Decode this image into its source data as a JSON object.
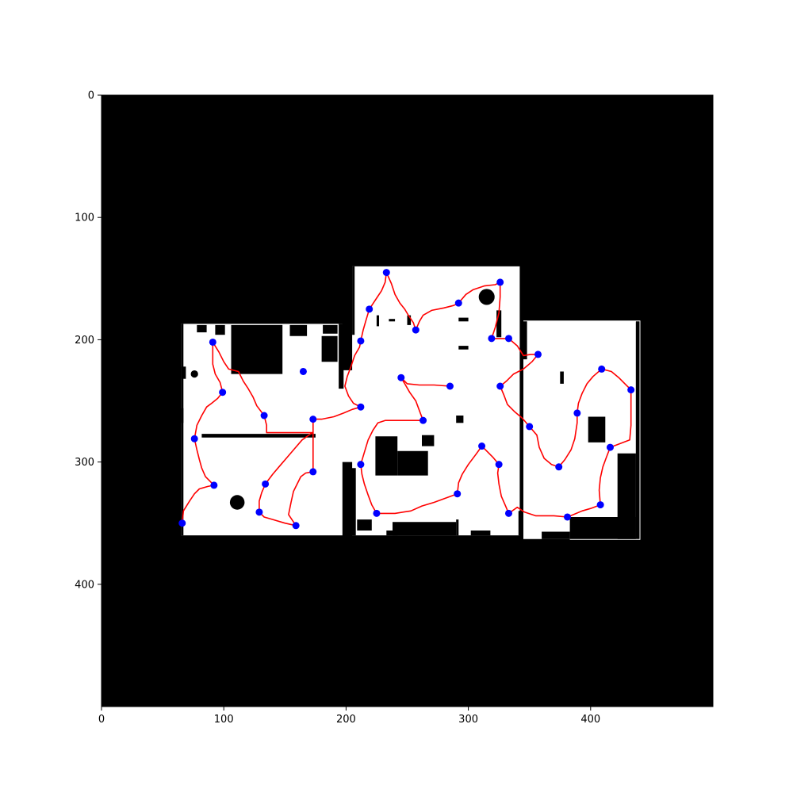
{
  "colors": {
    "background": "#000000",
    "free_space": "#ffffff",
    "path": "#ff0000",
    "waypoint": "#0000ff"
  },
  "chart_data": {
    "type": "image-with-path",
    "xlim": [
      0,
      500
    ],
    "ylim": [
      500,
      0
    ],
    "xticks": [
      "0",
      "100",
      "200",
      "300",
      "400"
    ],
    "yticks": [
      "0",
      "100",
      "200",
      "300",
      "400"
    ],
    "free_regions": [
      [
        [
          65,
          187
        ],
        [
          197,
          187
        ],
        [
          197,
          360
        ],
        [
          65,
          360
        ]
      ],
      [
        [
          205,
          140
        ],
        [
          342,
          140
        ],
        [
          342,
          360
        ],
        [
          205,
          360
        ]
      ],
      [
        [
          345,
          185
        ],
        [
          437,
          185
        ],
        [
          437,
          363
        ],
        [
          345,
          363
        ]
      ],
      [
        [
          195,
          225
        ],
        [
          210,
          225
        ],
        [
          210,
          300
        ],
        [
          195,
          300
        ]
      ]
    ],
    "obstacles": [
      [
        [
          106,
          188
        ],
        [
          148,
          188
        ],
        [
          148,
          228
        ],
        [
          106,
          228
        ]
      ],
      [
        [
          78,
          188
        ],
        [
          86,
          188
        ],
        [
          86,
          194
        ],
        [
          78,
          194
        ]
      ],
      [
        [
          93,
          188
        ],
        [
          101,
          188
        ],
        [
          101,
          196
        ],
        [
          93,
          196
        ]
      ],
      [
        [
          154,
          188
        ],
        [
          168,
          188
        ],
        [
          168,
          197
        ],
        [
          154,
          197
        ]
      ],
      [
        [
          181,
          188
        ],
        [
          193,
          188
        ],
        [
          193,
          195
        ],
        [
          181,
          195
        ]
      ],
      [
        [
          180,
          197
        ],
        [
          193,
          197
        ],
        [
          193,
          218
        ],
        [
          180,
          218
        ]
      ],
      [
        [
          194,
          187
        ],
        [
          198,
          187
        ],
        [
          198,
          240
        ],
        [
          194,
          240
        ]
      ],
      [
        [
          82,
          277
        ],
        [
          175,
          277
        ],
        [
          175,
          280
        ],
        [
          82,
          280
        ]
      ],
      [
        [
          65,
          187
        ],
        [
          67,
          187
        ],
        [
          67,
          360
        ],
        [
          65,
          360
        ]
      ],
      [
        [
          65,
          256
        ],
        [
          67,
          256
        ],
        [
          67,
          268
        ],
        [
          65,
          268
        ]
      ],
      [
        [
          205,
          140
        ],
        [
          207,
          140
        ],
        [
          207,
          196
        ],
        [
          205,
          196
        ]
      ],
      [
        [
          224,
          279
        ],
        [
          242,
          279
        ],
        [
          242,
          311
        ],
        [
          224,
          311
        ]
      ],
      [
        [
          242,
          291
        ],
        [
          267,
          291
        ],
        [
          267,
          311
        ],
        [
          242,
          311
        ]
      ],
      [
        [
          262,
          278
        ],
        [
          272,
          278
        ],
        [
          272,
          287
        ],
        [
          262,
          287
        ]
      ],
      [
        [
          292,
          182
        ],
        [
          300,
          182
        ],
        [
          300,
          185
        ],
        [
          292,
          185
        ]
      ],
      [
        [
          292,
          205
        ],
        [
          300,
          205
        ],
        [
          300,
          208
        ],
        [
          292,
          208
        ]
      ],
      [
        [
          323,
          176
        ],
        [
          327,
          176
        ],
        [
          327,
          198
        ],
        [
          323,
          198
        ]
      ],
      [
        [
          344,
          185
        ],
        [
          348,
          185
        ],
        [
          348,
          216
        ],
        [
          344,
          216
        ]
      ],
      [
        [
          398,
          263
        ],
        [
          412,
          263
        ],
        [
          412,
          284
        ],
        [
          398,
          284
        ]
      ],
      [
        [
          422,
          293
        ],
        [
          437,
          293
        ],
        [
          437,
          363
        ],
        [
          422,
          363
        ]
      ],
      [
        [
          383,
          345
        ],
        [
          437,
          345
        ],
        [
          437,
          363
        ],
        [
          383,
          363
        ]
      ],
      [
        [
          238,
          349
        ],
        [
          290,
          349
        ],
        [
          290,
          360
        ],
        [
          238,
          360
        ]
      ],
      [
        [
          204,
          305
        ],
        [
          208,
          305
        ],
        [
          208,
          360
        ],
        [
          204,
          360
        ]
      ],
      [
        [
          198,
          318
        ],
        [
          203,
          318
        ],
        [
          203,
          360
        ],
        [
          198,
          360
        ]
      ],
      [
        [
          209,
          347
        ],
        [
          221,
          347
        ],
        [
          221,
          356
        ],
        [
          209,
          356
        ]
      ],
      [
        [
          290,
          347
        ],
        [
          292,
          347
        ],
        [
          292,
          360
        ],
        [
          290,
          360
        ]
      ],
      [
        [
          302,
          356
        ],
        [
          318,
          356
        ],
        [
          318,
          360
        ],
        [
          302,
          360
        ]
      ],
      [
        [
          341,
          340
        ],
        [
          345,
          340
        ],
        [
          345,
          360
        ],
        [
          341,
          360
        ]
      ],
      [
        [
          360,
          357
        ],
        [
          383,
          357
        ],
        [
          383,
          363
        ],
        [
          360,
          363
        ]
      ],
      [
        [
          233,
          356
        ],
        [
          242,
          356
        ],
        [
          242,
          360
        ],
        [
          233,
          360
        ]
      ],
      [
        [
          225,
          180
        ],
        [
          227,
          180
        ],
        [
          227,
          189
        ],
        [
          225,
          189
        ]
      ],
      [
        [
          235,
          183
        ],
        [
          240,
          183
        ],
        [
          240,
          185
        ],
        [
          235,
          185
        ]
      ],
      [
        [
          250,
          180
        ],
        [
          253,
          180
        ],
        [
          253,
          188
        ],
        [
          250,
          188
        ]
      ],
      [
        [
          65,
          222
        ],
        [
          69,
          222
        ],
        [
          69,
          232
        ],
        [
          65,
          232
        ]
      ],
      [
        [
          290,
          262
        ],
        [
          296,
          262
        ],
        [
          296,
          268
        ],
        [
          290,
          268
        ]
      ],
      [
        [
          375,
          226
        ],
        [
          378,
          226
        ],
        [
          378,
          236
        ],
        [
          375,
          236
        ]
      ],
      [
        [
          437,
          185
        ],
        [
          440,
          185
        ],
        [
          440,
          363
        ],
        [
          437,
          363
        ]
      ]
    ],
    "round_obstacles": [
      {
        "x": 315,
        "y": 165,
        "r": 6.5
      },
      {
        "x": 111,
        "y": 333,
        "r": 6
      },
      {
        "x": 76,
        "y": 228,
        "r": 3
      }
    ],
    "path": [
      [
        66,
        350
      ],
      [
        67,
        340
      ],
      [
        72,
        332
      ],
      [
        76,
        326
      ],
      [
        80,
        322
      ],
      [
        87,
        320
      ],
      [
        92,
        319
      ],
      [
        85,
        312
      ],
      [
        82,
        305
      ],
      [
        80,
        298
      ],
      [
        78,
        290
      ],
      [
        76,
        281
      ],
      [
        78,
        270
      ],
      [
        82,
        262
      ],
      [
        86,
        255
      ],
      [
        90,
        252
      ],
      [
        95,
        248
      ],
      [
        99,
        243
      ],
      [
        97,
        235
      ],
      [
        93,
        228
      ],
      [
        91,
        220
      ],
      [
        91,
        212
      ],
      [
        91,
        202
      ],
      [
        96,
        210
      ],
      [
        100,
        218
      ],
      [
        104,
        224
      ],
      [
        112,
        226
      ],
      [
        116,
        234
      ],
      [
        120,
        240
      ],
      [
        124,
        247
      ],
      [
        127,
        254
      ],
      [
        133,
        262
      ],
      [
        135,
        270
      ],
      [
        135,
        276
      ],
      [
        165,
        276
      ],
      [
        173,
        276
      ],
      [
        173,
        265
      ],
      [
        173,
        285
      ],
      [
        173,
        298
      ],
      [
        173,
        308
      ],
      [
        167,
        309
      ],
      [
        163,
        312
      ],
      [
        160,
        318
      ],
      [
        157,
        324
      ],
      [
        155,
        333
      ],
      [
        153,
        343
      ],
      [
        159,
        352
      ],
      [
        150,
        350
      ],
      [
        140,
        347
      ],
      [
        133,
        345
      ],
      [
        129,
        341
      ],
      [
        129,
        332
      ],
      [
        131,
        325
      ],
      [
        134,
        318
      ],
      [
        140,
        310
      ],
      [
        146,
        303
      ],
      [
        152,
        296
      ],
      [
        158,
        289
      ],
      [
        164,
        282
      ],
      [
        171,
        277
      ],
      [
        173,
        276
      ],
      [
        173,
        265
      ],
      [
        180,
        265
      ],
      [
        190,
        263
      ],
      [
        198,
        260
      ],
      [
        205,
        257
      ],
      [
        212,
        255
      ],
      [
        206,
        252
      ],
      [
        202,
        246
      ],
      [
        199,
        238
      ],
      [
        201,
        230
      ],
      [
        204,
        222
      ],
      [
        207,
        213
      ],
      [
        211,
        206
      ],
      [
        212,
        201
      ],
      [
        214,
        192
      ],
      [
        216,
        185
      ],
      [
        219,
        175
      ],
      [
        225,
        166
      ],
      [
        229,
        160
      ],
      [
        232,
        153
      ],
      [
        233,
        145
      ],
      [
        237,
        154
      ],
      [
        240,
        163
      ],
      [
        244,
        170
      ],
      [
        248,
        175
      ],
      [
        251,
        180
      ],
      [
        255,
        186
      ],
      [
        257,
        192
      ],
      [
        260,
        185
      ],
      [
        263,
        180
      ],
      [
        270,
        176
      ],
      [
        280,
        174
      ],
      [
        288,
        172
      ],
      [
        292,
        170
      ],
      [
        298,
        163
      ],
      [
        304,
        159
      ],
      [
        313,
        156
      ],
      [
        322,
        155
      ],
      [
        326,
        153
      ],
      [
        326,
        165
      ],
      [
        325,
        178
      ],
      [
        322,
        190
      ],
      [
        319,
        199
      ],
      [
        326,
        199
      ],
      [
        333,
        199
      ],
      [
        340,
        205
      ],
      [
        345,
        213
      ],
      [
        351,
        212
      ],
      [
        357,
        212
      ],
      [
        352,
        218
      ],
      [
        345,
        224
      ],
      [
        337,
        228
      ],
      [
        331,
        234
      ],
      [
        326,
        238
      ],
      [
        329,
        245
      ],
      [
        332,
        253
      ],
      [
        338,
        259
      ],
      [
        344,
        264
      ],
      [
        350,
        271
      ],
      [
        356,
        278
      ],
      [
        358,
        288
      ],
      [
        362,
        297
      ],
      [
        368,
        302
      ],
      [
        374,
        304
      ],
      [
        379,
        298
      ],
      [
        384,
        290
      ],
      [
        387,
        281
      ],
      [
        389,
        268
      ],
      [
        389,
        260
      ],
      [
        390,
        252
      ],
      [
        393,
        244
      ],
      [
        397,
        236
      ],
      [
        402,
        230
      ],
      [
        409,
        224
      ],
      [
        417,
        226
      ],
      [
        423,
        231
      ],
      [
        428,
        236
      ],
      [
        433,
        241
      ],
      [
        433,
        255
      ],
      [
        433,
        270
      ],
      [
        432,
        282
      ],
      [
        416,
        288
      ],
      [
        413,
        296
      ],
      [
        410,
        304
      ],
      [
        408,
        313
      ],
      [
        407,
        323
      ],
      [
        408,
        335
      ],
      [
        400,
        338
      ],
      [
        393,
        340
      ],
      [
        386,
        343
      ],
      [
        381,
        345
      ],
      [
        370,
        344
      ],
      [
        355,
        344
      ],
      [
        346,
        341
      ],
      [
        340,
        337
      ],
      [
        333,
        342
      ],
      [
        330,
        335
      ],
      [
        327,
        328
      ],
      [
        325,
        318
      ],
      [
        324,
        309
      ],
      [
        325,
        302
      ],
      [
        320,
        296
      ],
      [
        315,
        291
      ],
      [
        311,
        287
      ],
      [
        306,
        294
      ],
      [
        300,
        302
      ],
      [
        295,
        310
      ],
      [
        292,
        317
      ],
      [
        291,
        326
      ],
      [
        283,
        329
      ],
      [
        272,
        333
      ],
      [
        262,
        336
      ],
      [
        253,
        340
      ],
      [
        240,
        342
      ],
      [
        225,
        342
      ],
      [
        221,
        335
      ],
      [
        218,
        327
      ],
      [
        215,
        318
      ],
      [
        213,
        310
      ],
      [
        212,
        302
      ],
      [
        215,
        292
      ],
      [
        218,
        282
      ],
      [
        222,
        274
      ],
      [
        226,
        268
      ],
      [
        232,
        266
      ],
      [
        248,
        266
      ],
      [
        263,
        266
      ],
      [
        260,
        258
      ],
      [
        257,
        250
      ],
      [
        252,
        243
      ],
      [
        248,
        236
      ],
      [
        245,
        231
      ],
      [
        250,
        236
      ],
      [
        260,
        237
      ],
      [
        272,
        237
      ],
      [
        285,
        238
      ]
    ],
    "waypoints": [
      [
        66,
        350
      ],
      [
        92,
        319
      ],
      [
        76,
        281
      ],
      [
        99,
        243
      ],
      [
        91,
        202
      ],
      [
        133,
        262
      ],
      [
        165,
        226
      ],
      [
        173,
        265
      ],
      [
        173,
        308
      ],
      [
        159,
        352
      ],
      [
        129,
        341
      ],
      [
        134,
        318
      ],
      [
        212,
        255
      ],
      [
        212,
        201
      ],
      [
        219,
        175
      ],
      [
        233,
        145
      ],
      [
        257,
        192
      ],
      [
        292,
        170
      ],
      [
        326,
        153
      ],
      [
        319,
        199
      ],
      [
        333,
        199
      ],
      [
        357,
        212
      ],
      [
        326,
        238
      ],
      [
        350,
        271
      ],
      [
        374,
        304
      ],
      [
        389,
        260
      ],
      [
        409,
        224
      ],
      [
        433,
        241
      ],
      [
        416,
        288
      ],
      [
        408,
        335
      ],
      [
        381,
        345
      ],
      [
        333,
        342
      ],
      [
        325,
        302
      ],
      [
        311,
        287
      ],
      [
        291,
        326
      ],
      [
        225,
        342
      ],
      [
        212,
        302
      ],
      [
        263,
        266
      ],
      [
        245,
        231
      ],
      [
        285,
        238
      ]
    ]
  }
}
